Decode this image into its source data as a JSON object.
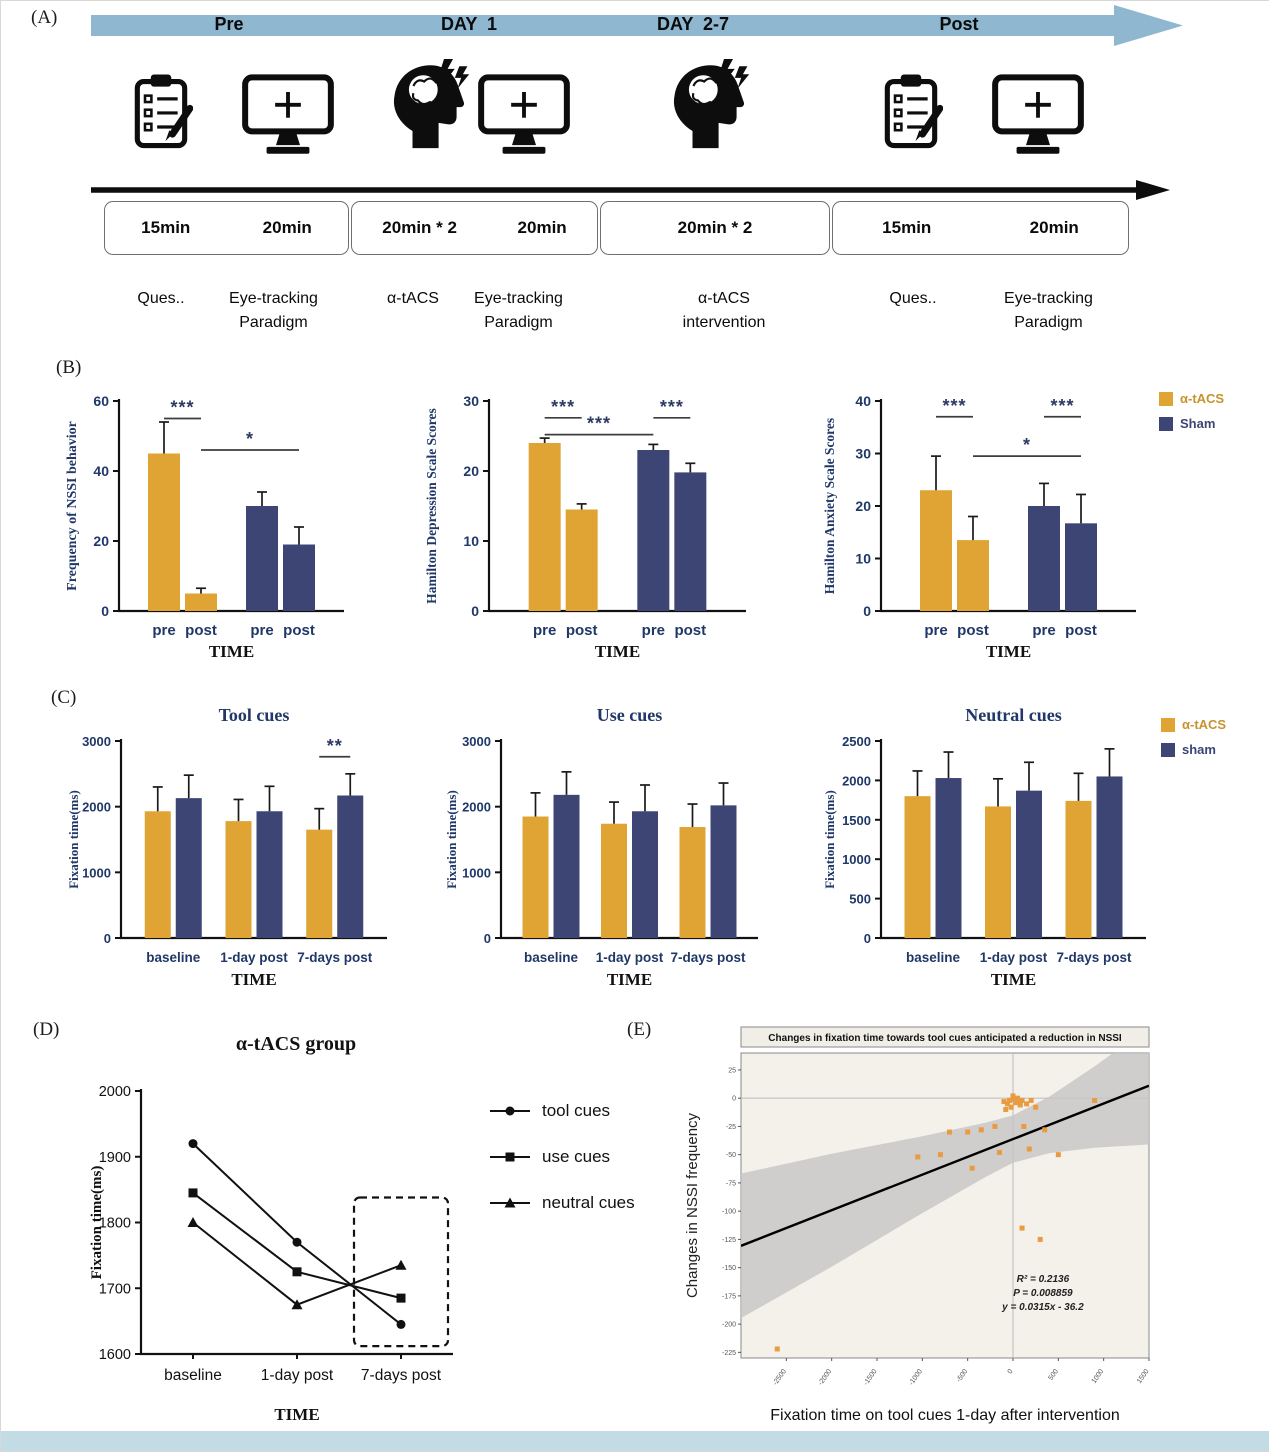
{
  "colors": {
    "gold": "#DFA433",
    "navy": "#3C4574",
    "navy_text": "#1F3868",
    "gold_text": "#C7922F",
    "arrow_blue": "#8FB7CF",
    "scatter_orange": "#E89B40",
    "footer_blue": "#C3DBE4"
  },
  "panel_a": {
    "label": "(A)",
    "phases": [
      "Pre",
      "DAY  1",
      "DAY  2-7",
      "Post"
    ],
    "duration_boxes": [
      {
        "items": [
          "15min",
          "20min"
        ]
      },
      {
        "items": [
          "20min * 2",
          "20min"
        ]
      },
      {
        "items": [
          "20min * 2"
        ]
      },
      {
        "items": [
          "15min",
          "20min"
        ]
      }
    ],
    "activities": [
      {
        "lines": [
          "Ques.."
        ]
      },
      {
        "lines": [
          "Eye-tracking",
          "Paradigm"
        ]
      },
      {
        "lines": [
          "α-tACS"
        ]
      },
      {
        "lines": [
          "Eye-tracking",
          "Paradigm"
        ]
      },
      {
        "lines": [
          "α-tACS",
          "intervention"
        ]
      },
      {
        "lines": [
          "Ques.."
        ]
      },
      {
        "lines": [
          "Eye-tracking",
          "Paradigm"
        ]
      }
    ]
  },
  "panel_b": {
    "label": "(B)",
    "legend": [
      {
        "label": "α-tACS",
        "color": "gold"
      },
      {
        "label": "Sham",
        "color": "navy"
      }
    ]
  },
  "panel_c": {
    "label": "(C)",
    "legend": [
      {
        "label": "α-tACS",
        "color": "gold"
      },
      {
        "label": "sham",
        "color": "navy"
      }
    ]
  },
  "panel_d": {
    "label": "(D)",
    "title": "α-tACS group"
  },
  "panel_e": {
    "label": "(E)"
  },
  "chart_data": [
    {
      "id": "b1",
      "type": "bar",
      "ylabel": "Frequency of NSSI behavior",
      "xlabel": "TIME",
      "ylim": [
        0,
        60
      ],
      "yticks": [
        0,
        20,
        40,
        60
      ],
      "groups": [
        {
          "name": "α-tACS",
          "bars": [
            {
              "label": "pre",
              "value": 45,
              "err": 9,
              "color": "gold"
            },
            {
              "label": "post",
              "value": 5,
              "err": 1.5,
              "color": "gold"
            }
          ]
        },
        {
          "name": "Sham",
          "bars": [
            {
              "label": "pre",
              "value": 30,
              "err": 4,
              "color": "navy"
            },
            {
              "label": "post",
              "value": 19,
              "err": 5,
              "color": "navy"
            }
          ]
        }
      ],
      "sig": [
        {
          "from": 0,
          "to": 1,
          "y": 55,
          "label": "***"
        },
        {
          "from": 1,
          "to": 3,
          "y": 46,
          "label": "*"
        }
      ]
    },
    {
      "id": "b2",
      "type": "bar",
      "ylabel": "Hamilton Depression Scale Scores",
      "xlabel": "TIME",
      "ylim": [
        0,
        30
      ],
      "yticks": [
        0,
        10,
        20,
        30
      ],
      "groups": [
        {
          "name": "α-tACS",
          "bars": [
            {
              "label": "pre",
              "value": 24,
              "err": 0.7,
              "color": "gold"
            },
            {
              "label": "post",
              "value": 14.5,
              "err": 0.8,
              "color": "gold"
            }
          ]
        },
        {
          "name": "Sham",
          "bars": [
            {
              "label": "pre",
              "value": 23,
              "err": 0.8,
              "color": "navy"
            },
            {
              "label": "post",
              "value": 19.8,
              "err": 1.3,
              "color": "navy"
            }
          ]
        }
      ],
      "sig": [
        {
          "from": 0,
          "to": 1,
          "y": 27.6,
          "label": "***"
        },
        {
          "from": 2,
          "to": 3,
          "y": 27.6,
          "label": "***"
        },
        {
          "from": 0,
          "to": 2,
          "y": 25.2,
          "label": "***"
        }
      ]
    },
    {
      "id": "b3",
      "type": "bar",
      "ylabel": "Hamilton Anxiety Scale Scores",
      "xlabel": "TIME",
      "ylim": [
        0,
        40
      ],
      "yticks": [
        0,
        10,
        20,
        30,
        40
      ],
      "groups": [
        {
          "name": "α-tACS",
          "bars": [
            {
              "label": "pre",
              "value": 23,
              "err": 6.5,
              "color": "gold"
            },
            {
              "label": "post",
              "value": 13.5,
              "err": 4.5,
              "color": "gold"
            }
          ]
        },
        {
          "name": "Sham",
          "bars": [
            {
              "label": "pre",
              "value": 20,
              "err": 4.3,
              "color": "navy"
            },
            {
              "label": "post",
              "value": 16.7,
              "err": 5.5,
              "color": "navy"
            }
          ]
        }
      ],
      "sig": [
        {
          "from": 0,
          "to": 1,
          "y": 37,
          "label": "***"
        },
        {
          "from": 2,
          "to": 3,
          "y": 37,
          "label": "***"
        },
        {
          "from": 1,
          "to": 3,
          "y": 29.5,
          "label": "*"
        }
      ]
    },
    {
      "id": "c1",
      "type": "bar",
      "title": "Tool cues",
      "ylabel": "Fixation time(ms)",
      "xlabel": "TIME",
      "ylim": [
        0,
        3000
      ],
      "yticks": [
        0,
        1000,
        2000,
        3000
      ],
      "groups": [
        {
          "label": "baseline",
          "bars": [
            {
              "value": 1930,
              "err": 370,
              "color": "gold"
            },
            {
              "value": 2130,
              "err": 350,
              "color": "navy"
            }
          ]
        },
        {
          "label": "1-day post",
          "bars": [
            {
              "value": 1780,
              "err": 330,
              "color": "gold"
            },
            {
              "value": 1930,
              "err": 380,
              "color": "navy"
            }
          ]
        },
        {
          "label": "7-days post",
          "bars": [
            {
              "value": 1650,
              "err": 320,
              "color": "gold"
            },
            {
              "value": 2170,
              "err": 330,
              "color": "navy"
            }
          ]
        }
      ],
      "sig": [
        {
          "from": 4,
          "to": 5,
          "y": 2760,
          "label": "**"
        }
      ]
    },
    {
      "id": "c2",
      "type": "bar",
      "title": "Use  cues",
      "ylabel": "Fixation time(ms)",
      "xlabel": "TIME",
      "ylim": [
        0,
        3000
      ],
      "yticks": [
        0,
        1000,
        2000,
        3000
      ],
      "groups": [
        {
          "label": "baseline",
          "bars": [
            {
              "value": 1850,
              "err": 360,
              "color": "gold"
            },
            {
              "value": 2180,
              "err": 350,
              "color": "navy"
            }
          ]
        },
        {
          "label": "1-day post",
          "bars": [
            {
              "value": 1740,
              "err": 330,
              "color": "gold"
            },
            {
              "value": 1930,
              "err": 400,
              "color": "navy"
            }
          ]
        },
        {
          "label": "7-days post",
          "bars": [
            {
              "value": 1690,
              "err": 350,
              "color": "gold"
            },
            {
              "value": 2020,
              "err": 340,
              "color": "navy"
            }
          ]
        }
      ]
    },
    {
      "id": "c3",
      "type": "bar",
      "title": "Neutral cues",
      "ylabel": "Fixation time(ms)",
      "xlabel": "TIME",
      "ylim": [
        0,
        2500
      ],
      "yticks": [
        0,
        500,
        1000,
        1500,
        2000,
        2500
      ],
      "groups": [
        {
          "label": "baseline",
          "bars": [
            {
              "value": 1800,
              "err": 320,
              "color": "gold"
            },
            {
              "value": 2030,
              "err": 330,
              "color": "navy"
            }
          ]
        },
        {
          "label": "1-day post",
          "bars": [
            {
              "value": 1670,
              "err": 350,
              "color": "gold"
            },
            {
              "value": 1870,
              "err": 360,
              "color": "navy"
            }
          ]
        },
        {
          "label": "7-days post",
          "bars": [
            {
              "value": 1740,
              "err": 350,
              "color": "gold"
            },
            {
              "value": 2050,
              "err": 350,
              "color": "navy"
            }
          ]
        }
      ]
    },
    {
      "id": "d",
      "type": "line",
      "ylabel": "Fixation time(ms)",
      "xlabel": "TIME",
      "ylim": [
        1600,
        2000
      ],
      "yticks": [
        1600,
        1700,
        1800,
        1900,
        2000
      ],
      "categories": [
        "baseline",
        "1-day post",
        "7-days post"
      ],
      "series": [
        {
          "name": "tool cues",
          "marker": "circle",
          "values": [
            1920,
            1770,
            1645
          ]
        },
        {
          "name": "use cues",
          "marker": "square",
          "values": [
            1845,
            1725,
            1685
          ]
        },
        {
          "name": "neutral cues",
          "marker": "triangle",
          "values": [
            1800,
            1675,
            1735
          ]
        }
      ],
      "highlight_category": 2
    },
    {
      "id": "e",
      "type": "scatter",
      "title": "Changes in fixation time towards tool cues anticipated a reduction in NSSI",
      "ylabel": "Changes in NSSI frequency",
      "xlabel": "Fixation time on tool cues 1-day after intervention",
      "xlim": [
        -3000,
        1500
      ],
      "ylim": [
        -230,
        40
      ],
      "xticks": [
        -2500,
        -2000,
        -1500,
        -1000,
        -500,
        0,
        500,
        1000,
        1500
      ],
      "yticks": [
        25,
        0,
        -25,
        -50,
        -75,
        -100,
        -125,
        -150,
        -175,
        -200,
        -225
      ],
      "hline_y": 0,
      "vline_x": 0,
      "points": [
        [
          -2600,
          -222
        ],
        [
          -1050,
          -52
        ],
        [
          -800,
          -50
        ],
        [
          -700,
          -30
        ],
        [
          -500,
          -30
        ],
        [
          -450,
          -62
        ],
        [
          -350,
          -28
        ],
        [
          -200,
          -25
        ],
        [
          -150,
          -48
        ],
        [
          -100,
          -3
        ],
        [
          -80,
          -10
        ],
        [
          -60,
          -5
        ],
        [
          -40,
          -2
        ],
        [
          -20,
          -8
        ],
        [
          0,
          2
        ],
        [
          10,
          -1
        ],
        [
          30,
          -4
        ],
        [
          50,
          0
        ],
        [
          60,
          -3
        ],
        [
          80,
          -6
        ],
        [
          100,
          -2
        ],
        [
          120,
          -25
        ],
        [
          150,
          -5
        ],
        [
          180,
          -45
        ],
        [
          200,
          -2
        ],
        [
          250,
          -8
        ],
        [
          100,
          -115
        ],
        [
          300,
          -125
        ],
        [
          350,
          -28
        ],
        [
          500,
          -50
        ],
        [
          900,
          -2
        ]
      ],
      "regression": {
        "slope": 0.0315,
        "intercept": -36.2
      },
      "stats": [
        "R² = 0.2136",
        "P = 0.008859",
        "y = 0.0315x - 36.2"
      ]
    }
  ]
}
